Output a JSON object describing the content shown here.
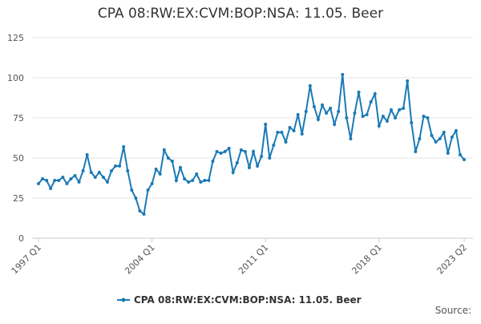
{
  "chart_data": {
    "type": "line",
    "title": "CPA 08:RW:EX:CVM:BOP:NSA: 11.05. Beer",
    "source": "Source:",
    "categories": [
      "1997 Q1",
      null,
      null,
      null,
      null,
      null,
      null,
      null,
      null,
      null,
      null,
      null,
      null,
      null,
      null,
      null,
      null,
      null,
      null,
      null,
      null,
      null,
      null,
      null,
      null,
      null,
      null,
      null,
      "2004 Q1",
      null,
      null,
      null,
      null,
      null,
      null,
      null,
      null,
      null,
      null,
      null,
      null,
      null,
      null,
      null,
      null,
      null,
      null,
      null,
      null,
      null,
      null,
      null,
      null,
      null,
      null,
      null,
      "2011 Q1",
      null,
      null,
      null,
      null,
      null,
      null,
      null,
      null,
      null,
      null,
      null,
      null,
      null,
      null,
      null,
      null,
      null,
      null,
      null,
      null,
      null,
      null,
      null,
      null,
      null,
      null,
      null,
      "2018 Q1",
      null,
      null,
      null,
      null,
      null,
      null,
      null,
      null,
      null,
      null,
      null,
      null,
      null,
      null,
      null,
      null,
      null,
      null,
      null,
      null,
      "2023 Q2"
    ],
    "series": [
      {
        "name": "CPA 08:RW:EX:CVM:BOP:NSA: 11.05. Beer",
        "color": "#1a7ab5",
        "values": [
          34,
          37,
          36,
          31,
          36,
          36,
          38,
          34,
          37,
          39,
          35,
          42,
          52,
          41,
          38,
          41,
          38,
          35,
          42,
          45,
          45,
          57,
          42,
          30,
          25,
          17,
          15,
          30,
          34,
          43,
          40,
          55,
          50,
          48,
          36,
          44,
          37,
          35,
          36,
          40,
          35,
          36,
          36,
          48,
          54,
          53,
          54,
          56,
          41,
          47,
          55,
          54,
          44,
          54,
          45,
          51,
          71,
          50,
          58,
          66,
          66,
          60,
          69,
          67,
          77,
          65,
          79,
          95,
          82,
          74,
          83,
          78,
          81,
          71,
          79,
          102,
          75,
          62,
          78,
          91,
          76,
          77,
          85,
          90,
          70,
          76,
          73,
          80,
          75,
          80,
          81,
          98,
          72,
          54,
          62,
          76,
          75,
          64,
          60,
          62,
          66,
          53,
          63,
          67,
          52,
          49
        ]
      }
    ],
    "ylim": [
      0,
      125
    ],
    "yticks": [
      0,
      25,
      50,
      75,
      100,
      125
    ],
    "grid": true
  }
}
